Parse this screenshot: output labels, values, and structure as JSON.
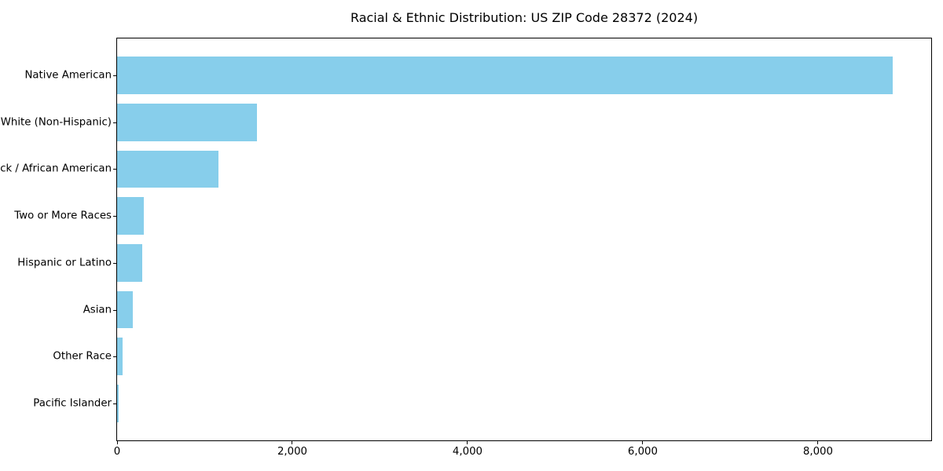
{
  "chart_data": {
    "type": "bar",
    "orientation": "horizontal",
    "title": "Racial & Ethnic Distribution: US ZIP Code 28372 (2024)",
    "categories": [
      "Native American",
      "White (Non-Hispanic)",
      "Black / African American",
      "Two or More Races",
      "Hispanic or Latino",
      "Asian",
      "Other Race",
      "Pacific Islander"
    ],
    "values": [
      8850,
      1600,
      1160,
      305,
      290,
      180,
      62,
      18
    ],
    "xlabel": "",
    "ylabel": "",
    "xlim": [
      0,
      9292
    ],
    "x_ticks": [
      {
        "value": 0,
        "label": "0"
      },
      {
        "value": 2000,
        "label": "2,000"
      },
      {
        "value": 4000,
        "label": "4,000"
      },
      {
        "value": 6000,
        "label": "6,000"
      },
      {
        "value": 8000,
        "label": "8,000"
      }
    ],
    "bar_color": "#87CEEB",
    "background_color": "#ffffff",
    "spine_color": "#000000",
    "text_color": "#000000",
    "grid": false,
    "legend": null
  }
}
